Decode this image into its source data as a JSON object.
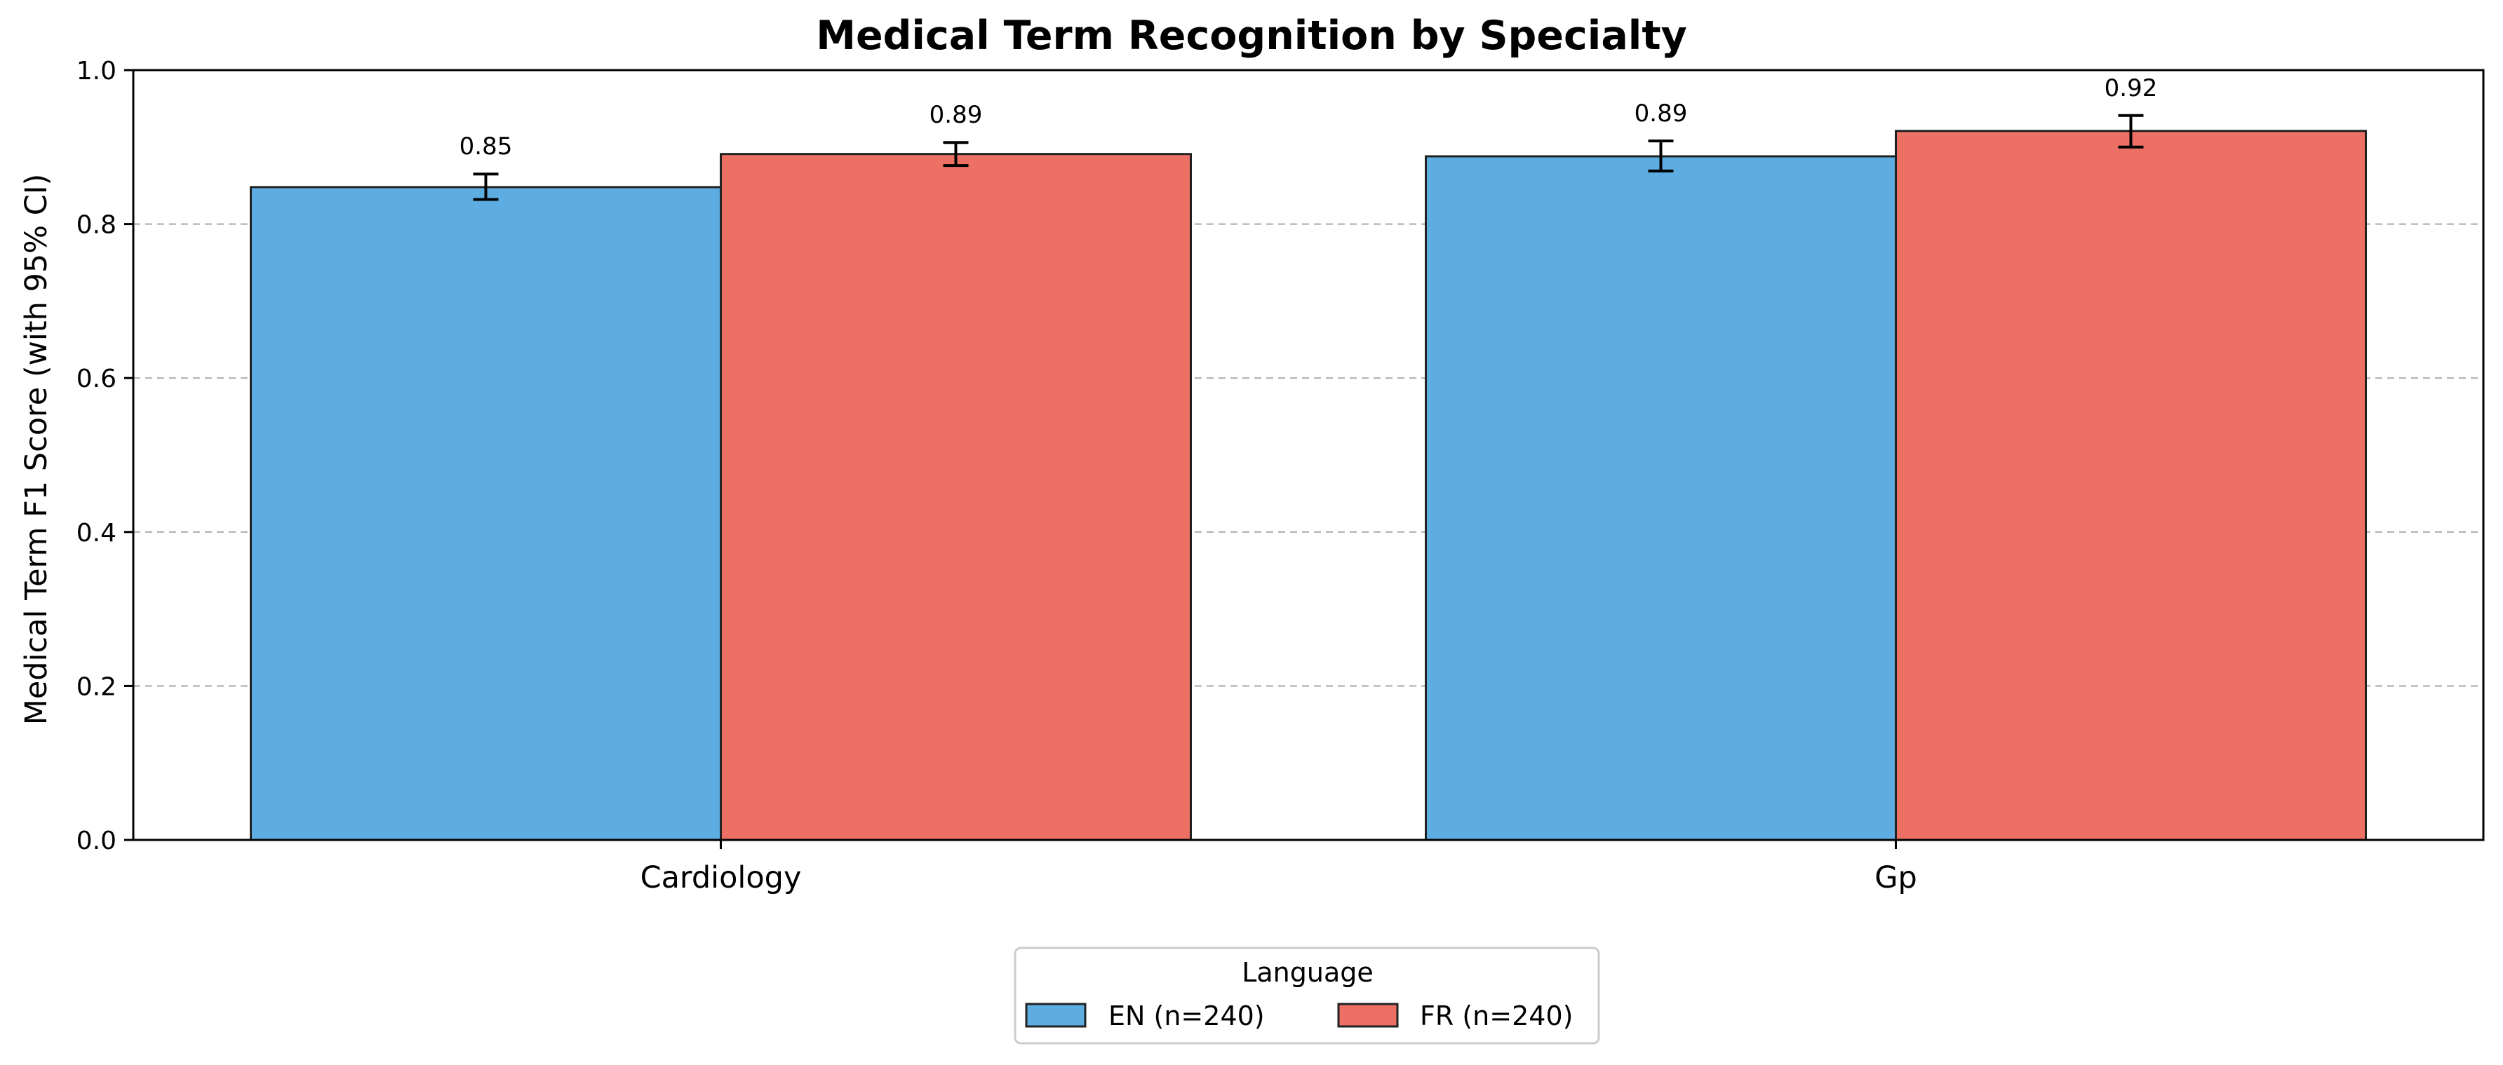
{
  "chart_data": {
    "type": "bar",
    "title": "Medical Term Recognition by Specialty",
    "xlabel": "",
    "ylabel": "Medical Term F1 Score (with 95% CI)",
    "ylim": [
      0,
      1.0
    ],
    "yticks": [
      "0.0",
      "0.2",
      "0.4",
      "0.6",
      "0.8",
      "1.0"
    ],
    "grid": "y-dashed",
    "categories": [
      "Cardiology",
      "Gp"
    ],
    "series": [
      {
        "name": "EN (n=240)",
        "color": "#5dade2",
        "values": [
          0.848,
          0.888
        ],
        "ci_low": [
          0.832,
          0.869
        ],
        "ci_high": [
          0.865,
          0.908
        ],
        "labels": [
          "0.85",
          "0.89"
        ]
      },
      {
        "name": "FR (n=240)",
        "color": "#ec7063",
        "values": [
          0.891,
          0.921
        ],
        "ci_low": [
          0.876,
          0.9
        ],
        "ci_high": [
          0.906,
          0.941
        ],
        "labels": [
          "0.89",
          "0.92"
        ]
      }
    ],
    "legend": {
      "title": "Language",
      "placement": "bottom-center"
    }
  }
}
